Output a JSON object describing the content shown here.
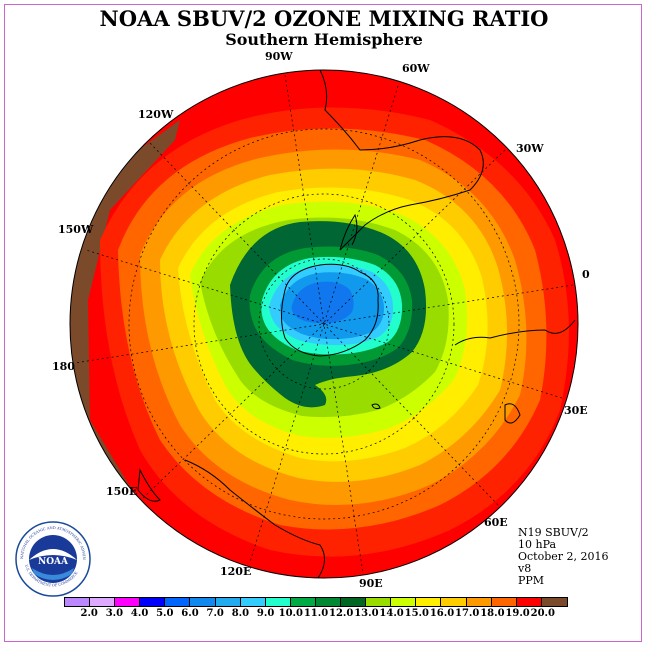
{
  "header": {
    "title": "NOAA SBUV/2 OZONE MIXING RATIO",
    "subtitle": "Southern Hemisphere"
  },
  "map": {
    "projection": "south-polar-stereographic",
    "longitude_labels": [
      "90W",
      "60W",
      "30W",
      "0",
      "30E",
      "60E",
      "90E",
      "120E",
      "150E",
      "180",
      "150W",
      "120W"
    ],
    "fill_colors": {
      "outer": "#ff0000",
      "band_18": "#ff5500",
      "band_17": "#ff9900",
      "band_16": "#ffbb00",
      "band_15": "#ffee00",
      "band_14": "#ccff00",
      "band_13": "#99dd00",
      "band_12": "#006633",
      "band_11": "#009933",
      "band_10": "#22ffcc",
      "band_9": "#33ccff",
      "band_8": "#1199ee",
      "band_7": "#1177ee",
      "land_cap": "#7a4a2a"
    }
  },
  "info": {
    "satellite": "N19 SBUV/2",
    "level": "10 hPa",
    "date": "October 2, 2016",
    "version": "v8",
    "units": "PPM"
  },
  "colorbar": {
    "colors": [
      "#bb88ff",
      "#ddaaff",
      "#ff00ff",
      "#0000ff",
      "#0066ff",
      "#1188ee",
      "#22aaee",
      "#33ccff",
      "#22ffcc",
      "#00aa44",
      "#008833",
      "#006622",
      "#99dd00",
      "#ccff00",
      "#ffee00",
      "#ffcc00",
      "#ff9900",
      "#ff6600",
      "#ff0000",
      "#7a4a2a"
    ],
    "labels": [
      "2.0",
      "3.0",
      "4.0",
      "5.0",
      "6.0",
      "7.0",
      "8.0",
      "9.0",
      "10.0",
      "11.0",
      "12.0",
      "13.0",
      "14.0",
      "15.0",
      "16.0",
      "17.0",
      "18.0",
      "19.0",
      "20.0"
    ]
  },
  "logo": {
    "text": "NOAA",
    "ring_text_top": "NATIONAL OCEANIC AND ATMOSPHERIC ADMINISTRATION",
    "ring_text_bottom": "U.S. DEPARTMENT OF COMMERCE"
  }
}
